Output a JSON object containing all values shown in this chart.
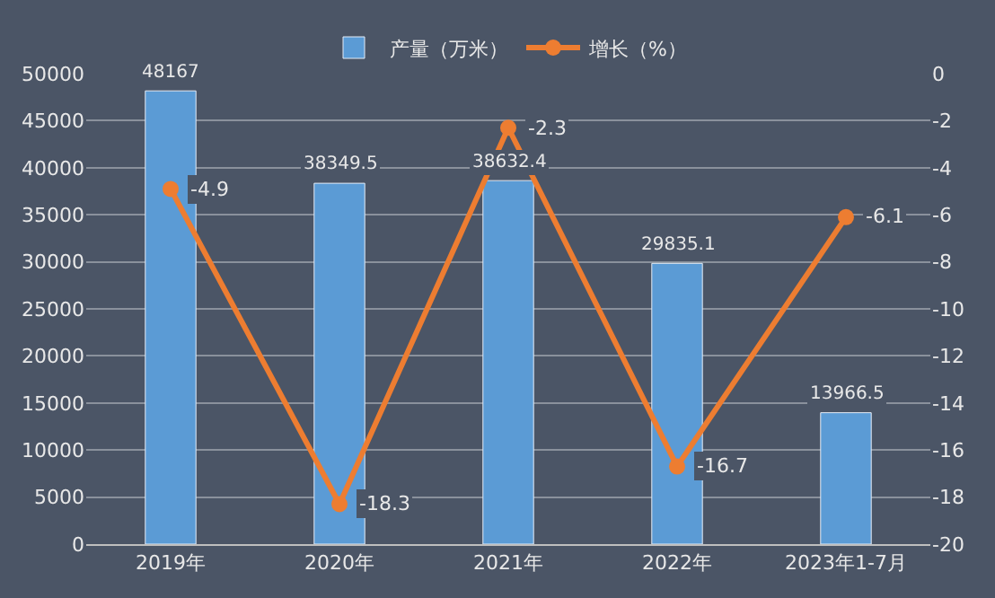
{
  "chart_data": {
    "type": "bar",
    "categories": [
      "2019年",
      "2020年",
      "2021年",
      "2022年",
      "2023年1-7月"
    ],
    "series": [
      {
        "name": "产量（万米）",
        "color": "#5b9bd5",
        "values": [
          48167,
          38349.5,
          38632.4,
          29835.1,
          13966.5
        ]
      },
      {
        "name": "增长（%）",
        "type": "line",
        "axis": "y2",
        "color": "#ed7d31",
        "values": [
          -4.9,
          -18.3,
          -2.3,
          -16.7,
          -6.1
        ]
      }
    ],
    "ylim": [
      0,
      50000
    ],
    "yticks": [
      0,
      5000,
      10000,
      15000,
      20000,
      25000,
      30000,
      35000,
      40000,
      45000,
      50000
    ],
    "y2lim": [
      -20,
      0
    ],
    "y2ticks": [
      -20,
      -18,
      -16,
      -14,
      -12,
      -10,
      -8,
      -6,
      -4,
      -2,
      0
    ],
    "data_labels": true,
    "grid": "y",
    "legend": "top",
    "marker": "circle",
    "line_style": "solid"
  }
}
